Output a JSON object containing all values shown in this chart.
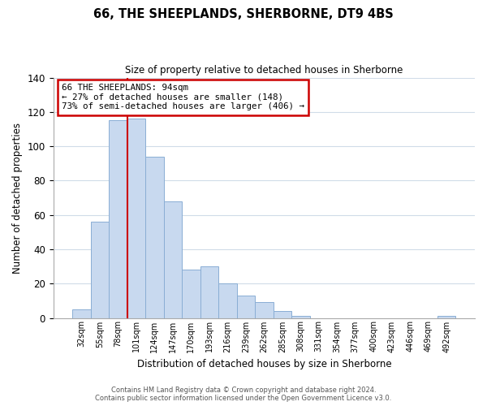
{
  "title": "66, THE SHEEPLANDS, SHERBORNE, DT9 4BS",
  "subtitle": "Size of property relative to detached houses in Sherborne",
  "xlabel": "Distribution of detached houses by size in Sherborne",
  "ylabel": "Number of detached properties",
  "bar_labels": [
    "32sqm",
    "55sqm",
    "78sqm",
    "101sqm",
    "124sqm",
    "147sqm",
    "170sqm",
    "193sqm",
    "216sqm",
    "239sqm",
    "262sqm",
    "285sqm",
    "308sqm",
    "331sqm",
    "354sqm",
    "377sqm",
    "400sqm",
    "423sqm",
    "446sqm",
    "469sqm",
    "492sqm"
  ],
  "bar_heights": [
    5,
    56,
    115,
    116,
    94,
    68,
    28,
    30,
    20,
    13,
    9,
    4,
    1,
    0,
    0,
    0,
    0,
    0,
    0,
    0,
    1
  ],
  "bar_color": "#c8d9ef",
  "bar_edge_color": "#8aaed4",
  "ylim": [
    0,
    140
  ],
  "yticks": [
    0,
    20,
    40,
    60,
    80,
    100,
    120,
    140
  ],
  "red_line_bar_index": 2,
  "annotation_text": "66 THE SHEEPLANDS: 94sqm\n← 27% of detached houses are smaller (148)\n73% of semi-detached houses are larger (406) →",
  "annotation_box_color": "#ffffff",
  "annotation_box_edge": "#cc0000",
  "property_line_color": "#cc0000",
  "footer_line1": "Contains HM Land Registry data © Crown copyright and database right 2024.",
  "footer_line2": "Contains public sector information licensed under the Open Government Licence v3.0.",
  "bg_color": "#ffffff",
  "grid_color": "#d0dce8"
}
